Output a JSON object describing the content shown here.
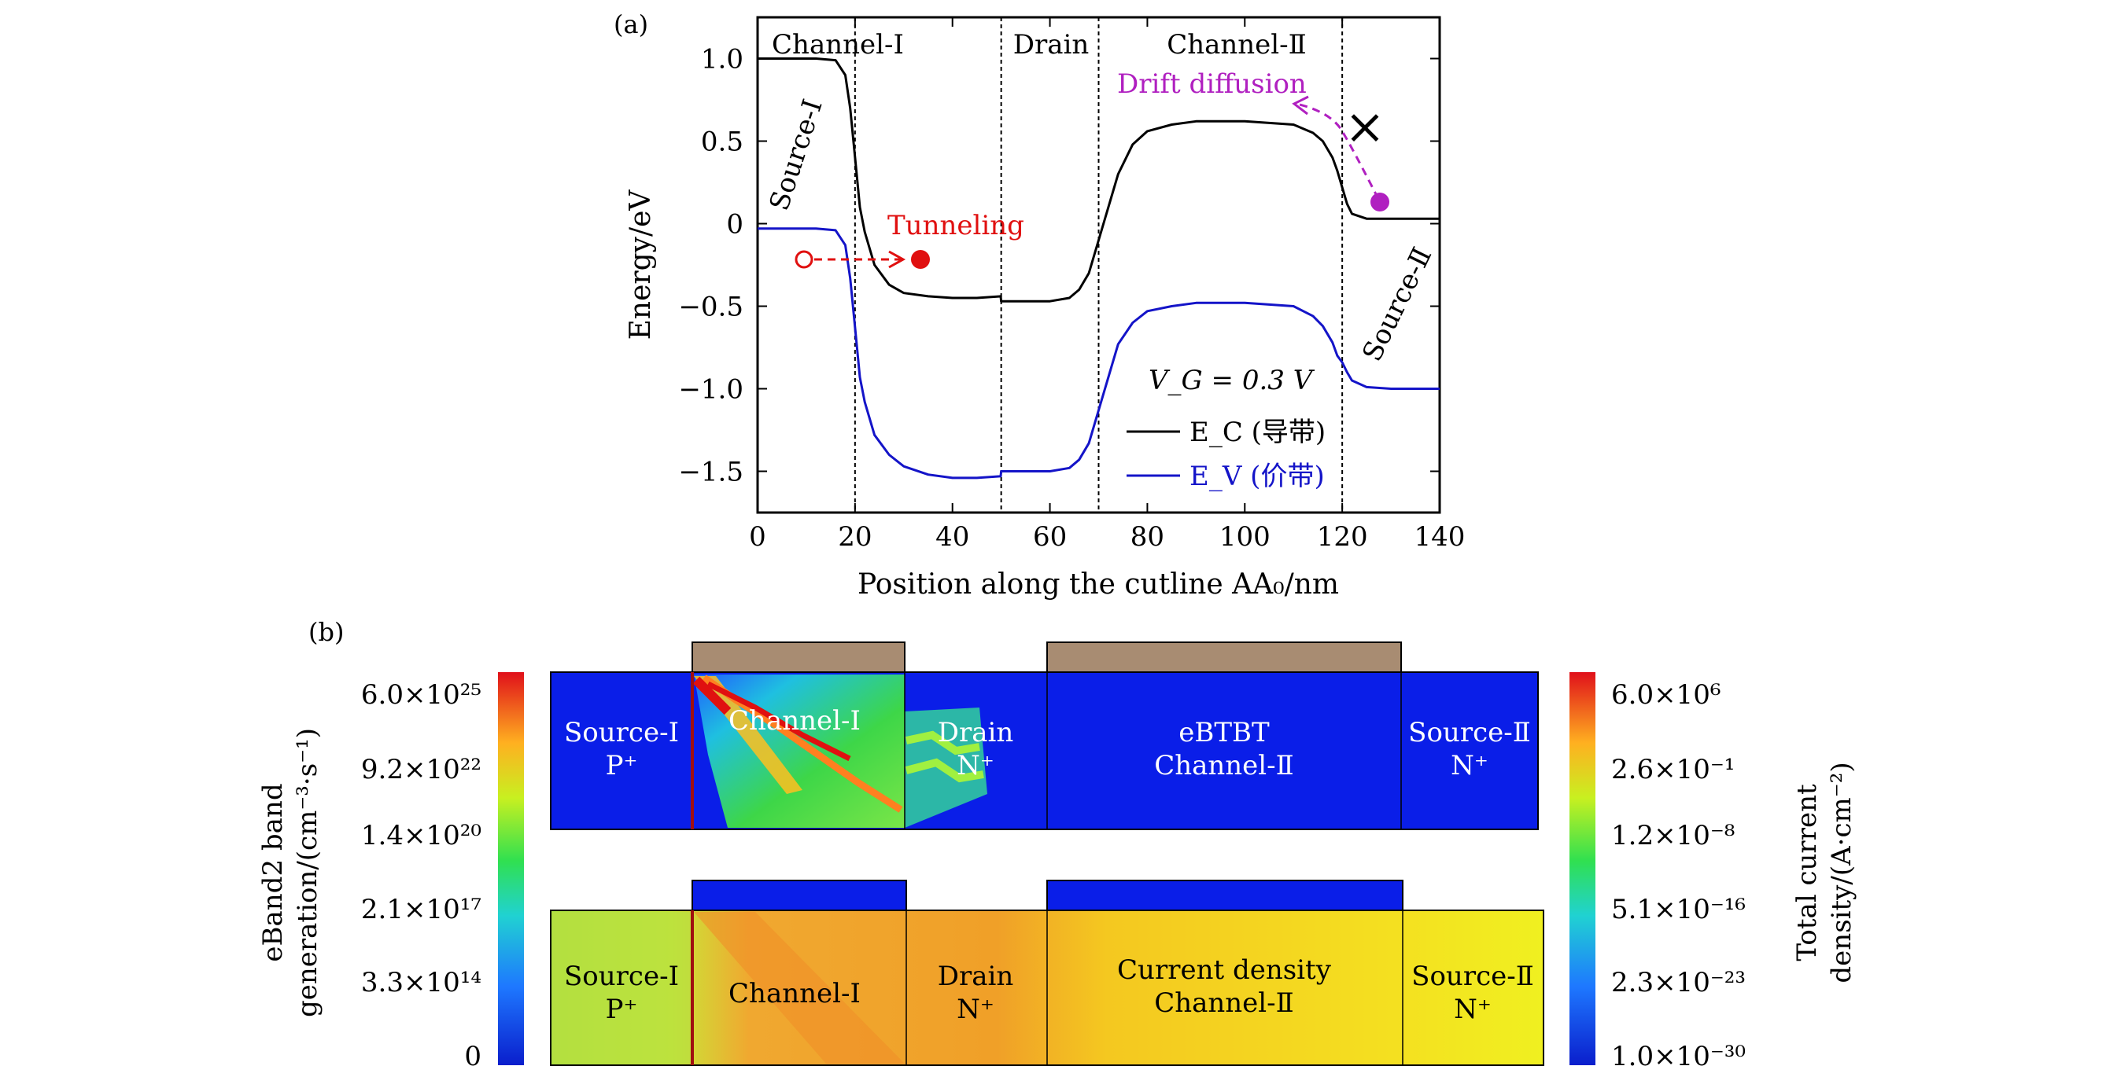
{
  "panel_a_label": "(a)",
  "panel_b_label": "(b)",
  "chart_data": [
    {
      "type": "line",
      "xlabel": "Position along the cutline AA₀/nm",
      "ylabel": "Energy/eV",
      "xlim": [
        0,
        140
      ],
      "ylim": [
        -1.75,
        1.25
      ],
      "xticks": [
        "0",
        "20",
        "40",
        "60",
        "80",
        "100",
        "120",
        "140"
      ],
      "yticks": [
        "1.0",
        "0.5",
        "0",
        "−0.5",
        "−1.0",
        "−1.5"
      ],
      "region_dividers_x": [
        20,
        50,
        70,
        120
      ],
      "region_labels": [
        "Channel-Ⅰ",
        "Drain",
        "Channel-Ⅱ"
      ],
      "side_labels": [
        "Source-Ⅰ",
        "Source-Ⅱ"
      ],
      "annotations": {
        "tunneling": "Tunneling",
        "drift": "Drift diffusion",
        "cross": "×",
        "vg": "V_G = 0.3 V"
      },
      "colors": {
        "ec": "#000000",
        "ev": "#1414c8",
        "tunnel": "#e01010",
        "drift": "#b020c0"
      },
      "series": [
        {
          "name": "E_C (导带)",
          "color": "#000000",
          "x": [
            0,
            12,
            16,
            18,
            19,
            20,
            21,
            22,
            24,
            27,
            30,
            35,
            40,
            45,
            49.9,
            50,
            55,
            60,
            64,
            66,
            68,
            70,
            72,
            74,
            77,
            80,
            85,
            90,
            100,
            110,
            114,
            116,
            118,
            119,
            120,
            121,
            122,
            125,
            130,
            140
          ],
          "y": [
            1.0,
            1.0,
            0.99,
            0.9,
            0.7,
            0.4,
            0.1,
            -0.05,
            -0.25,
            -0.37,
            -0.42,
            -0.44,
            -0.45,
            -0.45,
            -0.44,
            -0.47,
            -0.47,
            -0.47,
            -0.45,
            -0.4,
            -0.3,
            -0.1,
            0.1,
            0.3,
            0.48,
            0.56,
            0.6,
            0.62,
            0.62,
            0.6,
            0.55,
            0.5,
            0.4,
            0.32,
            0.22,
            0.12,
            0.06,
            0.03,
            0.03,
            0.03
          ]
        },
        {
          "name": "E_V (价带)",
          "color": "#1414c8",
          "x": [
            0,
            12,
            16,
            18,
            19,
            20,
            21,
            22,
            24,
            27,
            30,
            35,
            40,
            45,
            49.9,
            50,
            55,
            60,
            64,
            66,
            68,
            70,
            72,
            74,
            77,
            80,
            85,
            90,
            100,
            110,
            114,
            116,
            118,
            119,
            120,
            121,
            122,
            125,
            130,
            140
          ],
          "y": [
            -0.03,
            -0.03,
            -0.04,
            -0.13,
            -0.33,
            -0.63,
            -0.93,
            -1.08,
            -1.28,
            -1.4,
            -1.47,
            -1.52,
            -1.54,
            -1.54,
            -1.53,
            -1.5,
            -1.5,
            -1.5,
            -1.48,
            -1.43,
            -1.33,
            -1.13,
            -0.93,
            -0.73,
            -0.6,
            -0.53,
            -0.5,
            -0.48,
            -0.48,
            -0.5,
            -0.56,
            -0.62,
            -0.72,
            -0.8,
            -0.84,
            -0.9,
            -0.95,
            -0.99,
            -1.0,
            -1.0
          ]
        }
      ]
    },
    {
      "type": "heatmap",
      "colorbar_left": {
        "label_line1": "eBand2 band",
        "label_line2": "generation/(cm⁻³·s⁻¹)",
        "ticks": [
          "6.0×10²⁵",
          "9.2×10²²",
          "1.4×10²⁰",
          "2.1×10¹⁷",
          "3.3×10¹⁴",
          "0"
        ]
      },
      "colorbar_right": {
        "label_line1": "Total current",
        "label_line2": "density/(A·cm⁻²)",
        "ticks": [
          "6.0×10⁶",
          "2.6×10⁻¹",
          "1.2×10⁻⁸",
          "5.1×10⁻¹⁶",
          "2.3×10⁻²³",
          "1.0×10⁻³⁰"
        ]
      },
      "top_map": {
        "regions": [
          {
            "line1": "Source-Ⅰ",
            "line2": "P⁺"
          },
          {
            "line1": "Channel-Ⅰ",
            "line2": ""
          },
          {
            "line1": "Drain",
            "line2": "N⁺"
          },
          {
            "line1": "eBTBT",
            "line2": "Channel-Ⅱ"
          },
          {
            "line1": "Source-Ⅱ",
            "line2": "N⁺"
          }
        ]
      },
      "bottom_map": {
        "regions": [
          {
            "line1": "Source-Ⅰ",
            "line2": "P⁺"
          },
          {
            "line1": "Channel-Ⅰ",
            "line2": ""
          },
          {
            "line1": "Drain",
            "line2": "N⁺"
          },
          {
            "line1": "Current density",
            "line2": "Channel-Ⅱ"
          },
          {
            "line1": "Source-Ⅱ",
            "line2": "N⁺"
          }
        ]
      }
    }
  ]
}
